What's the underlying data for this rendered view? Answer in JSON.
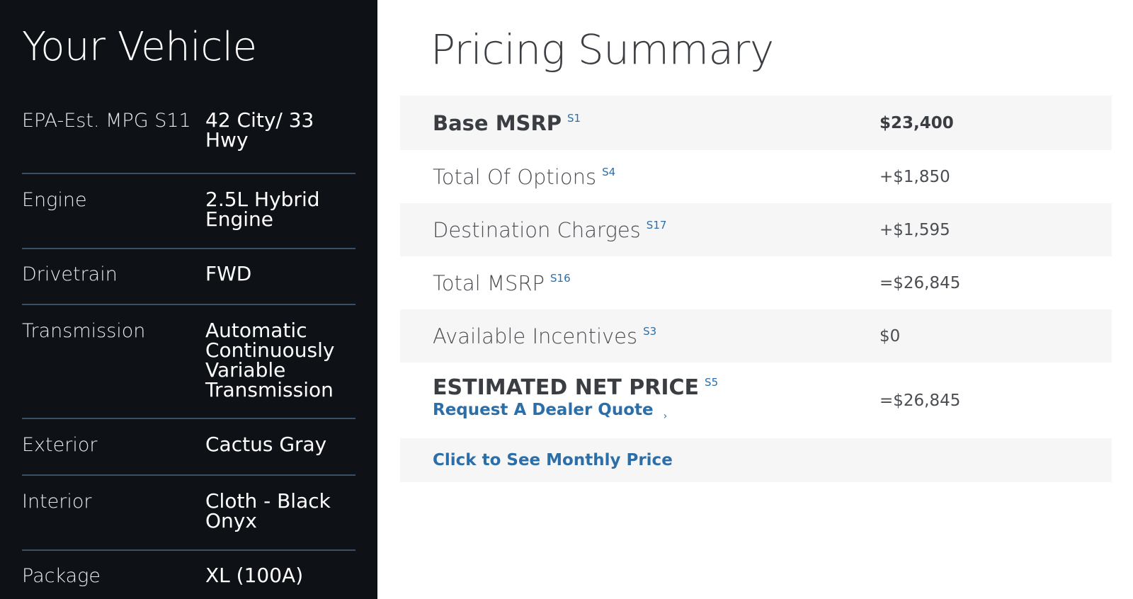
{
  "vehicle": {
    "title": "Your Vehicle",
    "specs": [
      {
        "label": "EPA-Est. MPG S11",
        "value": "42 City/ 33 Hwy"
      },
      {
        "label": "Engine",
        "value": "2.5L Hybrid Engine"
      },
      {
        "label": "Drivetrain",
        "value": "FWD"
      },
      {
        "label": "Transmission",
        "value": "Automatic Continuously Variable Transmission"
      },
      {
        "label": "Exterior",
        "value": "Cactus Gray"
      },
      {
        "label": "Interior",
        "value": "Cloth - Black Onyx"
      },
      {
        "label": "Package",
        "value": "XL (100A)"
      }
    ]
  },
  "pricing": {
    "title": "Pricing Summary",
    "rows": [
      {
        "label": "Base MSRP",
        "footnote": "S1",
        "value": "$23,400"
      },
      {
        "label": "Total Of Options",
        "footnote": "S4",
        "value": "+$1,850"
      },
      {
        "label": "Destination Charges",
        "footnote": "S17",
        "value": "+$1,595"
      },
      {
        "label": "Total MSRP",
        "footnote": "S16",
        "value": "=$26,845"
      },
      {
        "label": "Available Incentives",
        "footnote": "S3",
        "value": "$0"
      }
    ],
    "net": {
      "label": "ESTIMATED NET PRICE",
      "footnote": "S5",
      "value": "=$26,845",
      "dealer_link": "Request A Dealer Quote",
      "chevron": "›"
    },
    "monthly_link": "Click to See Monthly Price"
  },
  "colors": {
    "left_panel_bg": "#0e1217",
    "divider": "#3a4f63",
    "shaded_row": "#f6f6f6",
    "link": "#2c6fa8"
  }
}
